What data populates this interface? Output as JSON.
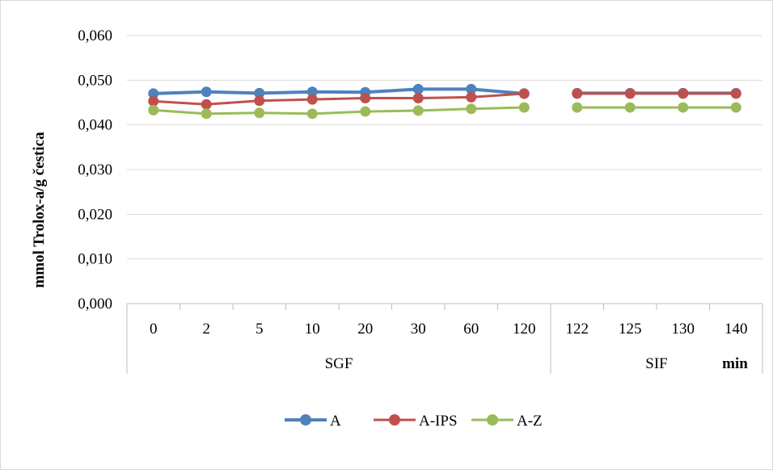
{
  "chart_data": {
    "type": "line",
    "title": "",
    "ylabel": "mmol Trolox-a/g čestica",
    "xunit": "min",
    "ylim": [
      0,
      0.06
    ],
    "yticks": [
      "0,000",
      "0,010",
      "0,020",
      "0,030",
      "0,040",
      "0,050",
      "0,060"
    ],
    "yticks_values": [
      0,
      0.01,
      0.02,
      0.03,
      0.04,
      0.05,
      0.06
    ],
    "grid": "horizontal",
    "legend": "bottom",
    "groups": [
      {
        "name": "SGF",
        "categories": [
          "0",
          "2",
          "5",
          "10",
          "20",
          "30",
          "60",
          "120"
        ]
      },
      {
        "name": "SIF",
        "categories": [
          "122",
          "125",
          "130",
          "140"
        ]
      }
    ],
    "categories": [
      "0",
      "2",
      "5",
      "10",
      "20",
      "30",
      "60",
      "120",
      "122",
      "125",
      "130",
      "140"
    ],
    "series": [
      {
        "name": "A",
        "color": "#4f81bd",
        "values": [
          0.047,
          0.0474,
          0.0471,
          0.0474,
          0.0473,
          0.048,
          0.048,
          0.047,
          0.0471,
          0.0471,
          0.0471,
          0.0471
        ]
      },
      {
        "name": "A-IPS",
        "color": "#c0504d",
        "values": [
          0.0453,
          0.0446,
          0.0454,
          0.0457,
          0.046,
          0.046,
          0.0462,
          0.047,
          0.047,
          0.047,
          0.047,
          0.047
        ]
      },
      {
        "name": "A-Z",
        "color": "#9bbb59",
        "values": [
          0.0433,
          0.0425,
          0.0427,
          0.0425,
          0.043,
          0.0432,
          0.0436,
          0.0439,
          0.0439,
          0.0439,
          0.0439,
          0.0439
        ]
      }
    ]
  }
}
